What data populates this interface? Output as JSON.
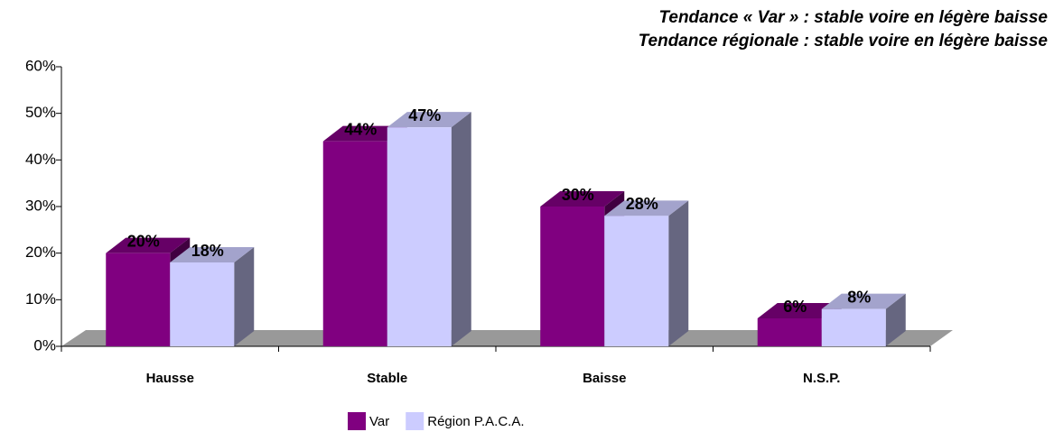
{
  "chart_data": {
    "type": "bar3d",
    "title": "Tendance « Var » : stable voire en légère baisse",
    "subtitle": "Tendance régionale : stable voire en légère baisse",
    "categories": [
      "Hausse",
      "Stable",
      "Baisse",
      "N.S.P."
    ],
    "series": [
      {
        "name": "Var",
        "color": "#800080",
        "values": [
          20,
          44,
          30,
          6
        ],
        "value_labels": [
          "20%",
          "44%",
          "30%",
          "6%"
        ]
      },
      {
        "name": "Région P.A.C.A.",
        "color": "#ccccff",
        "values": [
          18,
          47,
          28,
          8
        ],
        "value_labels": [
          "18%",
          "47%",
          "28%",
          "8%"
        ]
      }
    ],
    "ylim": [
      0,
      60
    ],
    "yticks": [
      {
        "value": 0,
        "label": "0%"
      },
      {
        "value": 10,
        "label": "10%"
      },
      {
        "value": 20,
        "label": "20%"
      },
      {
        "value": 30,
        "label": "30%"
      },
      {
        "value": 40,
        "label": "40%"
      },
      {
        "value": 50,
        "label": "50%"
      },
      {
        "value": 60,
        "label": "60%"
      }
    ],
    "grid": false
  }
}
